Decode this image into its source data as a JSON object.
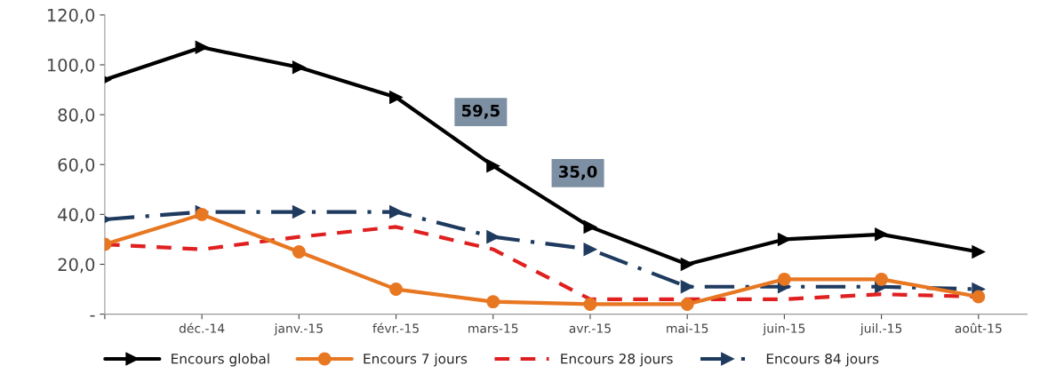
{
  "chart_data": {
    "type": "line",
    "categories": [
      null,
      "déc.-14",
      "janv.-15",
      "févr.-15",
      "mars-15",
      "avr.-15",
      "mai-15",
      "juin-15",
      "juil.-15",
      "août-15"
    ],
    "series": [
      {
        "name": "Encours global",
        "color": "#000000",
        "marker": "triangle",
        "line_style": "solid",
        "values": [
          94,
          107,
          99,
          87,
          59.5,
          35.0,
          20,
          30,
          32,
          25
        ],
        "value_labels": [
          null,
          null,
          null,
          null,
          "59,5",
          "35,0",
          null,
          null,
          null,
          null
        ]
      },
      {
        "name": "Encours 7 jours",
        "color": "#e87722",
        "marker": "circle",
        "line_style": "solid",
        "values": [
          28,
          40,
          25,
          10,
          5,
          4,
          4,
          14,
          14,
          7
        ]
      },
      {
        "name": "Encours 28 jours",
        "color": "#e02020",
        "marker": "none",
        "line_style": "dashed",
        "values": [
          28,
          26,
          31,
          35,
          26,
          6,
          6,
          6,
          8,
          7
        ]
      },
      {
        "name": "Encours 84 jours",
        "color": "#1f3a5f",
        "marker": "triangle",
        "line_style": "dashdot",
        "values": [
          38,
          41,
          41,
          41,
          31,
          26,
          11,
          11,
          11,
          10
        ]
      }
    ],
    "ylim": [
      0,
      120
    ],
    "yticks": [
      {
        "value": 0,
        "label": "-"
      },
      {
        "value": 20,
        "label": "20,0"
      },
      {
        "value": 40,
        "label": "40,0"
      },
      {
        "value": 60,
        "label": "60,0"
      },
      {
        "value": 80,
        "label": "80,0"
      },
      {
        "value": 100,
        "label": "100,0"
      },
      {
        "value": 120,
        "label": "120,0"
      }
    ],
    "grid": false,
    "legend": "bottom"
  }
}
